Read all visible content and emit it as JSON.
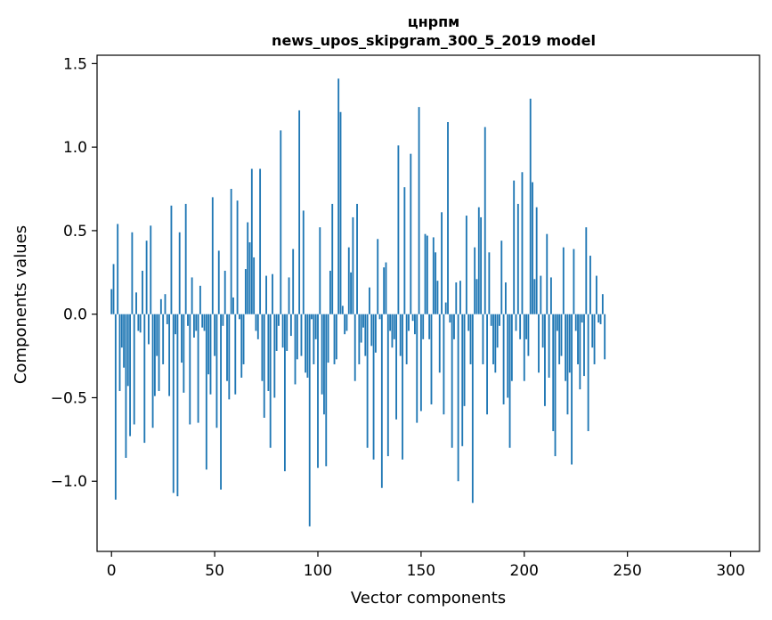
{
  "chart_data": {
    "type": "bar",
    "title": "цнрпм",
    "subtitle": "news_upos_skipgram_300_5_2019 model",
    "xlabel": "Vector components",
    "ylabel": "Components values",
    "xlim": [
      -7,
      314
    ],
    "ylim": [
      -1.42,
      1.55
    ],
    "xticks": [
      0,
      50,
      100,
      150,
      200,
      250,
      300
    ],
    "xtick_labels": [
      "0",
      "50",
      "100",
      "150",
      "200",
      "250",
      "300"
    ],
    "yticks": [
      -1.0,
      -0.5,
      0.0,
      0.5,
      1.0,
      1.5
    ],
    "ytick_labels": [
      "−1.0",
      "−0.5",
      "0.0",
      "0.5",
      "1.0",
      "1.5"
    ],
    "grid": false,
    "bar_color": "#1f77b4",
    "values": [
      0.15,
      0.3,
      -1.11,
      0.54,
      -0.46,
      -0.2,
      -0.32,
      -0.86,
      -0.43,
      -0.73,
      0.49,
      -0.66,
      0.13,
      -0.1,
      -0.11,
      0.26,
      -0.77,
      0.44,
      -0.18,
      0.53,
      -0.68,
      -0.49,
      -0.25,
      -0.46,
      0.09,
      -0.3,
      0.12,
      -0.06,
      -0.49,
      0.65,
      -1.07,
      -0.12,
      -1.09,
      0.49,
      -0.29,
      -0.47,
      0.66,
      -0.07,
      -0.66,
      0.22,
      -0.14,
      -0.1,
      -0.65,
      0.17,
      -0.08,
      -0.1,
      -0.93,
      -0.36,
      -0.48,
      0.7,
      -0.25,
      -0.68,
      0.38,
      -1.05,
      -0.07,
      0.26,
      -0.4,
      -0.51,
      0.75,
      0.1,
      -0.48,
      0.68,
      -0.03,
      -0.38,
      -0.3,
      0.27,
      0.55,
      0.43,
      0.87,
      0.34,
      -0.1,
      -0.15,
      0.87,
      -0.4,
      -0.62,
      0.23,
      -0.46,
      -0.8,
      0.24,
      -0.5,
      -0.22,
      -0.07,
      1.1,
      -0.2,
      -0.94,
      -0.22,
      0.22,
      -0.13,
      0.39,
      -0.42,
      -0.27,
      1.22,
      -0.25,
      0.62,
      -0.35,
      -0.38,
      -1.27,
      -0.03,
      -0.3,
      -0.15,
      -0.92,
      0.52,
      -0.48,
      -0.6,
      -0.91,
      -0.29,
      0.26,
      0.66,
      -0.3,
      -0.27,
      1.41,
      1.21,
      0.05,
      -0.12,
      -0.1,
      0.4,
      0.25,
      0.58,
      -0.4,
      0.66,
      -0.3,
      -0.17,
      -0.08,
      -0.25,
      -0.8,
      0.16,
      -0.19,
      -0.87,
      -0.23,
      0.45,
      -0.03,
      -1.04,
      0.28,
      0.31,
      -0.85,
      -0.1,
      -0.2,
      -0.15,
      -0.63,
      1.01,
      -0.25,
      -0.87,
      0.76,
      -0.3,
      -0.1,
      0.96,
      -0.04,
      -0.12,
      -0.65,
      1.24,
      -0.58,
      -0.15,
      0.48,
      0.47,
      -0.15,
      -0.54,
      0.46,
      0.37,
      0.2,
      -0.35,
      0.61,
      -0.6,
      0.07,
      1.15,
      -0.05,
      -0.8,
      -0.15,
      0.19,
      -1.0,
      0.2,
      -0.79,
      -0.55,
      0.59,
      -0.1,
      -0.3,
      -1.13,
      0.4,
      0.21,
      0.64,
      0.58,
      -0.3,
      1.12,
      -0.6,
      0.37,
      -0.07,
      -0.3,
      -0.35,
      -0.2,
      -0.07,
      0.44,
      -0.54,
      0.19,
      -0.5,
      -0.8,
      -0.4,
      0.8,
      -0.1,
      0.66,
      -0.15,
      0.85,
      -0.4,
      -0.15,
      -0.25,
      1.29,
      0.79,
      0.21,
      0.64,
      -0.35,
      0.23,
      -0.2,
      -0.55,
      0.48,
      -0.38,
      0.22,
      -0.7,
      -0.85,
      -0.1,
      -0.3,
      -0.25,
      0.4,
      -0.4,
      -0.6,
      -0.35,
      -0.9,
      0.39,
      -0.1,
      -0.3,
      -0.45,
      -0.05,
      -0.37,
      0.52,
      -0.7,
      0.35,
      -0.2,
      -0.3,
      0.23,
      -0.05,
      -0.06,
      0.12,
      -0.27
    ]
  }
}
